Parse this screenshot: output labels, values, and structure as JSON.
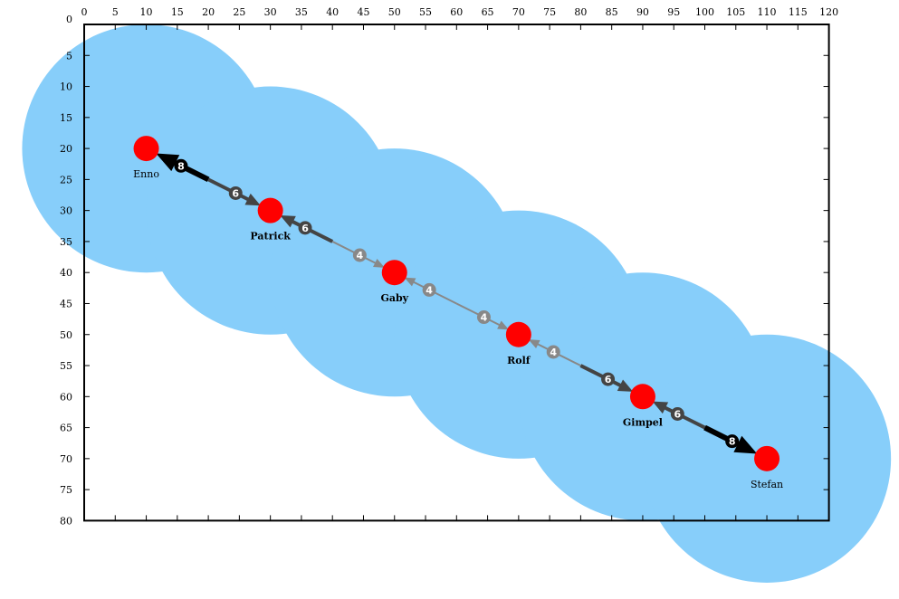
{
  "diagram": {
    "x_ticks": [
      "0",
      "5",
      "10",
      "15",
      "20",
      "25",
      "30",
      "35",
      "40",
      "45",
      "50",
      "55",
      "60",
      "65",
      "70",
      "75",
      "80",
      "85",
      "90",
      "95",
      "100",
      "105",
      "110",
      "115",
      "120"
    ],
    "y_ticks": [
      "0",
      "5",
      "10",
      "15",
      "20",
      "25",
      "30",
      "35",
      "40",
      "45",
      "50",
      "55",
      "60",
      "65",
      "70",
      "75",
      "80"
    ],
    "nodes": [
      {
        "id": "enno",
        "label": "Enno",
        "x": 10,
        "y": 20,
        "bold": false
      },
      {
        "id": "patrick",
        "label": "Patrick",
        "x": 30,
        "y": 30,
        "bold": true
      },
      {
        "id": "gaby",
        "label": "Gaby",
        "x": 50,
        "y": 40,
        "bold": true
      },
      {
        "id": "rolf",
        "label": "Rolf",
        "x": 70,
        "y": 50,
        "bold": true
      },
      {
        "id": "gimpel",
        "label": "Gimpel",
        "x": 90,
        "y": 60,
        "bold": true
      },
      {
        "id": "stefan",
        "label": "Stefan",
        "x": 110,
        "y": 70,
        "bold": false
      }
    ],
    "edges": [
      {
        "from": "patrick",
        "to": "enno",
        "label": "8",
        "color": "#000000"
      },
      {
        "from": "enno",
        "to": "patrick",
        "label": "6",
        "color": "#444444"
      },
      {
        "from": "gaby",
        "to": "patrick",
        "label": "6",
        "color": "#444444"
      },
      {
        "from": "patrick",
        "to": "gaby",
        "label": "4",
        "color": "#888888"
      },
      {
        "from": "rolf",
        "to": "gaby",
        "label": "4",
        "color": "#888888"
      },
      {
        "from": "gaby",
        "to": "rolf",
        "label": "4",
        "color": "#888888"
      },
      {
        "from": "gimpel",
        "to": "rolf",
        "label": "4",
        "color": "#888888"
      },
      {
        "from": "rolf",
        "to": "gimpel",
        "label": "6",
        "color": "#444444"
      },
      {
        "from": "stefan",
        "to": "gimpel",
        "label": "6",
        "color": "#444444"
      },
      {
        "from": "gimpel",
        "to": "stefan",
        "label": "8",
        "color": "#000000"
      }
    ],
    "colors": {
      "range": "#87cefa",
      "node": "#ff0000",
      "frame": "#000000"
    }
  }
}
